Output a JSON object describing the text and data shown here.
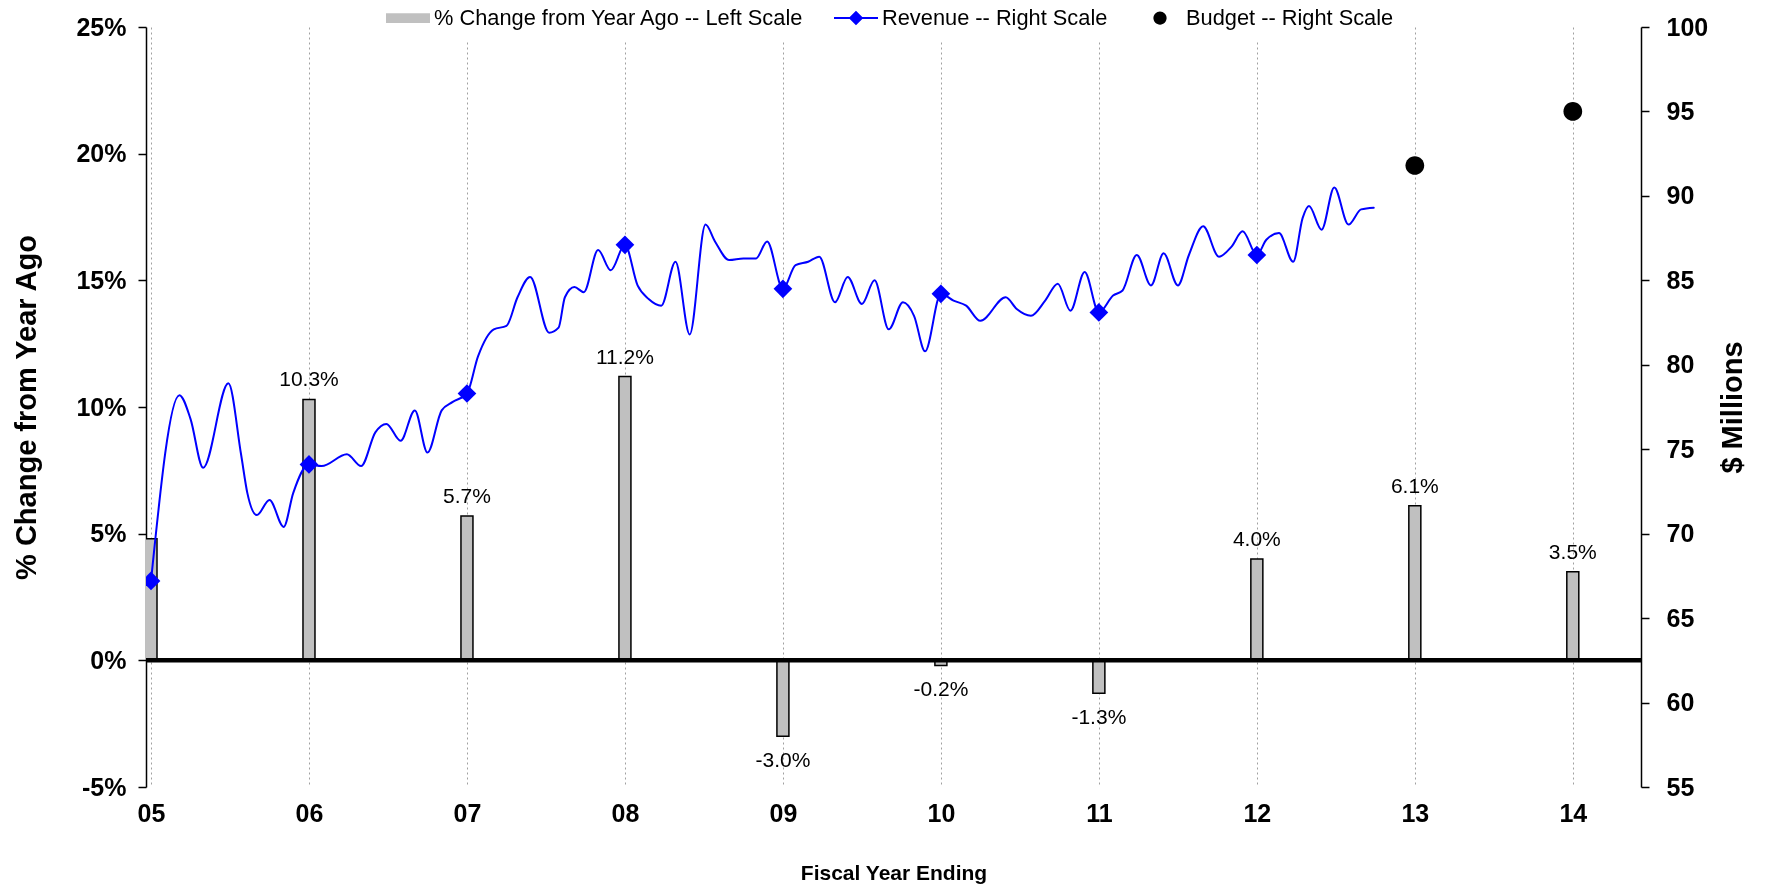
{
  "chart_data": {
    "type": "bar",
    "xlabel": "Fiscal Year Ending",
    "ylabel": "% Change from Year Ago",
    "y2label": "$ Millions",
    "x": [
      2005,
      2006,
      2007,
      2008,
      2009,
      2010,
      2011,
      2012,
      2013,
      2014
    ],
    "xlim": [
      2005,
      2014.4
    ],
    "xticks": [
      {
        "value": 2005,
        "label": "05"
      },
      {
        "value": 2006,
        "label": "06"
      },
      {
        "value": 2007,
        "label": "07"
      },
      {
        "value": 2008,
        "label": "08"
      },
      {
        "value": 2009,
        "label": "09"
      },
      {
        "value": 2010,
        "label": "10"
      },
      {
        "value": 2011,
        "label": "11"
      },
      {
        "value": 2012,
        "label": "12"
      },
      {
        "value": 2013,
        "label": "13"
      },
      {
        "value": 2014,
        "label": "14"
      }
    ],
    "ylim": [
      -5,
      25
    ],
    "yticks": [
      {
        "value": -5,
        "label": "-5%"
      },
      {
        "value": 0,
        "label": "0%"
      },
      {
        "value": 5,
        "label": "5%"
      },
      {
        "value": 10,
        "label": "10%"
      },
      {
        "value": 15,
        "label": "15%"
      },
      {
        "value": 20,
        "label": "20%"
      },
      {
        "value": 25,
        "label": "25%"
      }
    ],
    "y2lim": [
      55,
      100
    ],
    "y2ticks": [
      55,
      60,
      65,
      70,
      75,
      80,
      85,
      90,
      95,
      100
    ],
    "series": [
      {
        "name": "% Change from Year Ago -- Left Scale",
        "color": "#c0c0c0",
        "values": [
          4.8,
          10.3,
          5.7,
          11.2,
          -3.0,
          -0.2,
          -1.3,
          4.0,
          6.1,
          3.5
        ],
        "value_labels": [
          null,
          "10.3%",
          "5.7%",
          "11.2%",
          "-3.0%",
          "-0.2%",
          "-1.3%",
          "4.0%",
          "6.1%",
          "3.5%"
        ]
      },
      {
        "name": "Revenue -- Right Scale",
        "type": "line",
        "axis": "y2",
        "color": "#0000ff",
        "x": [
          2005.0,
          2005.18,
          2005.25,
          2005.33,
          2005.49,
          2005.57,
          2005.61,
          2005.67,
          2005.75,
          2005.84,
          2005.9,
          2006.0,
          2006.08,
          2006.24,
          2006.33,
          2006.42,
          2006.49,
          2006.58,
          2006.67,
          2006.75,
          2006.84,
          2006.91,
          2007.0,
          2007.07,
          2007.17,
          2007.25,
          2007.32,
          2007.4,
          2007.52,
          2007.58,
          2007.62,
          2007.68,
          2007.74,
          2007.83,
          2007.91,
          2008.0,
          2008.08,
          2008.15,
          2008.23,
          2008.32,
          2008.41,
          2008.51,
          2008.57,
          2008.66,
          2008.75,
          2008.83,
          2008.9,
          2009.0,
          2009.08,
          2009.16,
          2009.23,
          2009.33,
          2009.41,
          2009.5,
          2009.58,
          2009.67,
          2009.76,
          2009.83,
          2009.9,
          2010.0,
          2010.08,
          2010.16,
          2010.25,
          2010.41,
          2010.48,
          2010.57,
          2010.66,
          2010.74,
          2010.82,
          2010.91,
          2011.0,
          2011.09,
          2011.15,
          2011.24,
          2011.33,
          2011.41,
          2011.5,
          2011.57,
          2011.66,
          2011.76,
          2011.84,
          2011.91,
          2012.0,
          2012.06,
          2012.14,
          2012.23,
          2012.29,
          2012.33,
          2012.41,
          2012.49,
          2012.58,
          2012.66,
          2012.74
        ],
        "values": [
          67.2,
          78.2,
          76.8,
          73.9,
          78.9,
          74.7,
          72.4,
          71.1,
          72.0,
          70.4,
          72.4,
          74.1,
          74.0,
          74.7,
          74.0,
          76.0,
          76.5,
          75.5,
          77.3,
          74.8,
          77.3,
          77.8,
          78.3,
          80.5,
          82.1,
          82.3,
          84.0,
          85.2,
          81.9,
          82.2,
          84.0,
          84.6,
          84.3,
          86.8,
          85.6,
          87.1,
          84.7,
          83.9,
          83.5,
          86.1,
          81.8,
          88.3,
          87.3,
          86.2,
          86.3,
          86.3,
          87.3,
          84.5,
          85.9,
          86.1,
          86.4,
          83.7,
          85.2,
          83.6,
          85.0,
          82.1,
          83.7,
          82.9,
          80.8,
          84.2,
          83.8,
          83.5,
          82.6,
          84.0,
          83.3,
          82.9,
          83.8,
          84.8,
          83.2,
          85.5,
          83.1,
          84.1,
          84.4,
          86.5,
          84.7,
          86.6,
          84.7,
          86.5,
          88.2,
          86.4,
          87.0,
          87.9,
          86.5,
          87.4,
          87.8,
          86.1,
          88.7,
          89.4,
          88.0,
          90.5,
          88.3,
          89.2,
          89.3
        ]
      },
      {
        "type": "scatter",
        "axis": "y2",
        "color": "#0000ff",
        "marker": "diamond",
        "x": [
          2005,
          2006,
          2007,
          2008,
          2009,
          2010,
          2011,
          2012
        ],
        "values": [
          67.2,
          74.1,
          78.3,
          87.1,
          84.5,
          84.2,
          83.1,
          86.5
        ]
      },
      {
        "name": "Budget -- Right Scale",
        "type": "scatter",
        "axis": "y2",
        "color": "#000000",
        "marker": "circle",
        "x": [
          2013,
          2014
        ],
        "values": [
          91.8,
          95.0
        ]
      }
    ],
    "ref_lines": [
      {
        "axis": "y",
        "value": 0,
        "color": "#000000"
      }
    ],
    "grid": "x",
    "legend": "top"
  }
}
